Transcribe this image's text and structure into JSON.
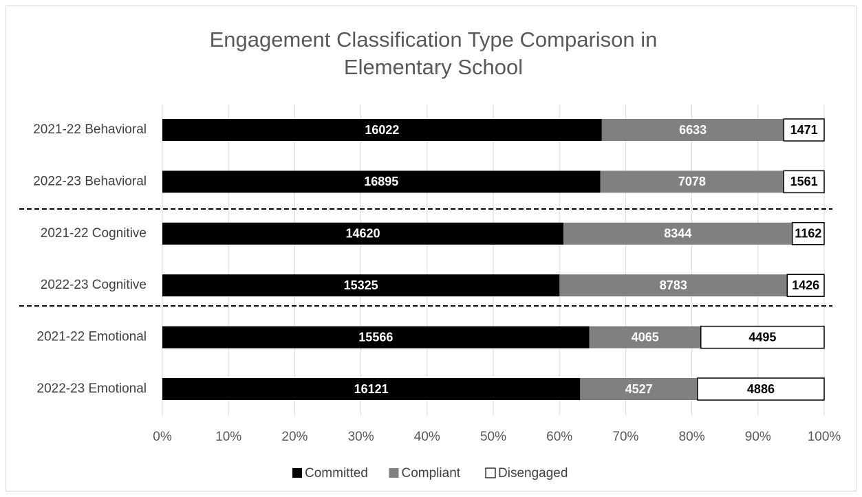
{
  "chart_data": {
    "type": "stacked_barh",
    "stack": "percent",
    "title": "Engagement Classification Type Comparison in Elementary School",
    "categories": [
      "2021-22 Behavioral",
      "2022-23 Behavioral",
      "2021-22 Cognitive",
      "2022-23 Cognitive",
      "2021-22 Emotional",
      "2022-23 Emotional"
    ],
    "series": [
      {
        "name": "Committed",
        "color": "#000000",
        "values": [
          16022,
          16895,
          14620,
          15325,
          15566,
          16121
        ]
      },
      {
        "name": "Compliant",
        "color": "#808080",
        "values": [
          6633,
          7078,
          8344,
          8783,
          4065,
          4527
        ]
      },
      {
        "name": "Disengaged",
        "color": "#ffffff",
        "values": [
          1471,
          1561,
          1162,
          1426,
          4495,
          4886
        ]
      }
    ],
    "xlim": [
      0,
      100
    ],
    "xticks": [
      {
        "value": 0,
        "label": "0%"
      },
      {
        "value": 10,
        "label": "10%"
      },
      {
        "value": 20,
        "label": "20%"
      },
      {
        "value": 30,
        "label": "30%"
      },
      {
        "value": 40,
        "label": "40%"
      },
      {
        "value": 50,
        "label": "50%"
      },
      {
        "value": 60,
        "label": "60%"
      },
      {
        "value": 70,
        "label": "70%"
      },
      {
        "value": 80,
        "label": "80%"
      },
      {
        "value": 90,
        "label": "90%"
      },
      {
        "value": 100,
        "label": "100%"
      }
    ],
    "grid": true,
    "legend": "bottom"
  }
}
